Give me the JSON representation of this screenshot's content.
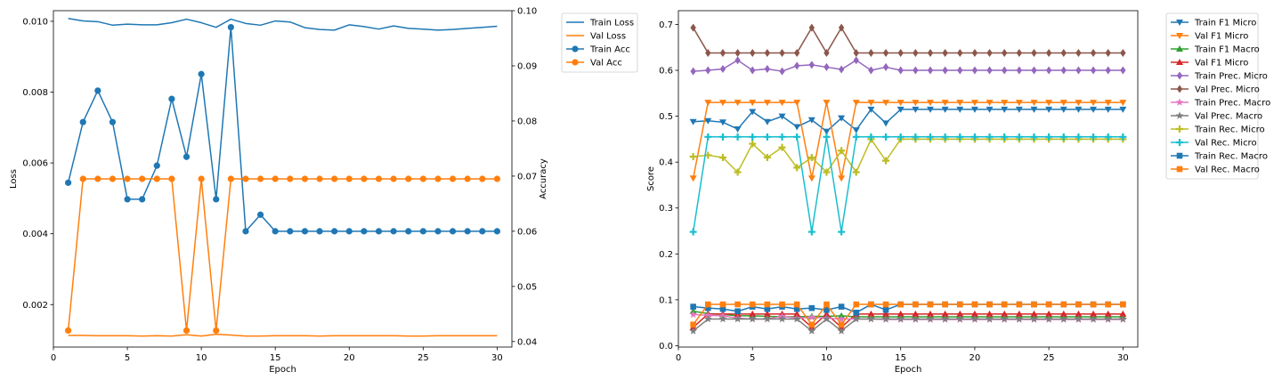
{
  "chart_data": [
    {
      "type": "line",
      "xlabel": "Epoch",
      "ylabel": "Loss",
      "ylabel_right": "Accuracy",
      "x": [
        1,
        2,
        3,
        4,
        5,
        6,
        7,
        8,
        9,
        10,
        11,
        12,
        13,
        14,
        15,
        16,
        17,
        18,
        19,
        20,
        21,
        22,
        23,
        24,
        25,
        26,
        27,
        28,
        29,
        30
      ],
      "xlim": [
        0.0,
        31.0
      ],
      "xticks": [
        0,
        5,
        10,
        15,
        20,
        25,
        30
      ],
      "ylim": [
        0.0008,
        0.0103
      ],
      "yticks": [
        0.002,
        0.004,
        0.006,
        0.008,
        0.01
      ],
      "yticks_labels": [
        "0.002",
        "0.004",
        "0.006",
        "0.008",
        "0.010"
      ],
      "ylim_right": [
        0.039,
        0.1
      ],
      "yticks_right": [
        0.04,
        0.05,
        0.06,
        0.07,
        0.08,
        0.09,
        0.1
      ],
      "yticks_right_labels": [
        "0.04",
        "0.05",
        "0.06",
        "0.07",
        "0.08",
        "0.09",
        "0.10"
      ],
      "grid": false,
      "legend_position": "outside-right",
      "series": [
        {
          "name": "Train Loss",
          "axis": "left",
          "color": "#1f77b4",
          "marker": "none",
          "values": [
            0.01008,
            0.01001,
            0.00999,
            0.00989,
            0.00992,
            0.0099,
            0.0099,
            0.00996,
            0.01006,
            0.00996,
            0.00983,
            0.01006,
            0.00994,
            0.00989,
            0.01001,
            0.00998,
            0.00982,
            0.00977,
            0.00975,
            0.0099,
            0.00985,
            0.00978,
            0.00987,
            0.0098,
            0.00978,
            0.00975,
            0.00977,
            0.0098,
            0.00983,
            0.00986
          ]
        },
        {
          "name": "Val Loss",
          "axis": "left",
          "color": "#ff7f0e",
          "marker": "none",
          "values": [
            0.00113,
            0.00113,
            0.00112,
            0.00112,
            0.00112,
            0.00111,
            0.00112,
            0.00111,
            0.00115,
            0.00111,
            0.00116,
            0.00114,
            0.00111,
            0.00111,
            0.00112,
            0.00112,
            0.00112,
            0.00111,
            0.00112,
            0.00112,
            0.00112,
            0.00112,
            0.00112,
            0.00111,
            0.00111,
            0.00112,
            0.00112,
            0.00112,
            0.00112,
            0.00112
          ]
        },
        {
          "name": "Train Acc",
          "axis": "right",
          "color": "#1f77b4",
          "marker": "circle",
          "values": [
            0.0688,
            0.0798,
            0.0855,
            0.0798,
            0.0658,
            0.0658,
            0.0719,
            0.084,
            0.0735,
            0.0885,
            0.0658,
            0.097,
            0.06,
            0.063,
            0.06,
            0.06,
            0.06,
            0.06,
            0.06,
            0.06,
            0.06,
            0.06,
            0.06,
            0.06,
            0.06,
            0.06,
            0.06,
            0.06,
            0.06,
            0.06
          ]
        },
        {
          "name": "Val Acc",
          "axis": "right",
          "color": "#ff7f0e",
          "marker": "circle",
          "values": [
            0.042,
            0.0695,
            0.0695,
            0.0695,
            0.0695,
            0.0695,
            0.0695,
            0.0695,
            0.042,
            0.0695,
            0.042,
            0.0695,
            0.0695,
            0.0695,
            0.0695,
            0.0695,
            0.0695,
            0.0695,
            0.0695,
            0.0695,
            0.0695,
            0.0695,
            0.0695,
            0.0695,
            0.0695,
            0.0695,
            0.0695,
            0.0695,
            0.0695,
            0.0695
          ]
        }
      ]
    },
    {
      "type": "line",
      "xlabel": "Epoch",
      "ylabel": "Score",
      "x": [
        1,
        2,
        3,
        4,
        5,
        6,
        7,
        8,
        9,
        10,
        11,
        12,
        13,
        14,
        15,
        16,
        17,
        18,
        19,
        20,
        21,
        22,
        23,
        24,
        25,
        26,
        27,
        28,
        29,
        30
      ],
      "xlim": [
        0.0,
        31.0
      ],
      "xticks": [
        0,
        5,
        10,
        15,
        20,
        25,
        30
      ],
      "ylim": [
        -0.003,
        0.73
      ],
      "yticks": [
        0.0,
        0.1,
        0.2,
        0.3,
        0.4,
        0.5,
        0.6,
        0.7
      ],
      "yticks_labels": [
        "0.0",
        "0.1",
        "0.2",
        "0.3",
        "0.4",
        "0.5",
        "0.6",
        "0.7"
      ],
      "grid": false,
      "legend_position": "outside-right",
      "series": [
        {
          "name": "Train F1 Micro",
          "color": "#1f77b4",
          "marker": "triangle-down",
          "values": [
            0.488,
            0.49,
            0.487,
            0.472,
            0.51,
            0.488,
            0.5,
            0.477,
            0.492,
            0.467,
            0.496,
            0.47,
            0.515,
            0.485,
            0.515,
            0.515,
            0.515,
            0.515,
            0.515,
            0.515,
            0.515,
            0.515,
            0.515,
            0.515,
            0.515,
            0.515,
            0.515,
            0.515,
            0.515,
            0.515
          ]
        },
        {
          "name": "Val F1 Micro",
          "color": "#ff7f0e",
          "marker": "triangle-down",
          "values": [
            0.365,
            0.53,
            0.53,
            0.53,
            0.53,
            0.53,
            0.53,
            0.53,
            0.365,
            0.53,
            0.365,
            0.53,
            0.53,
            0.53,
            0.53,
            0.53,
            0.53,
            0.53,
            0.53,
            0.53,
            0.53,
            0.53,
            0.53,
            0.53,
            0.53,
            0.53,
            0.53,
            0.53,
            0.53,
            0.53
          ]
        },
        {
          "name": "Train F1 Macro",
          "color": "#2ca02c",
          "marker": "triangle-up",
          "values": [
            0.075,
            0.07,
            0.068,
            0.065,
            0.065,
            0.064,
            0.063,
            0.063,
            0.064,
            0.064,
            0.065,
            0.063,
            0.063,
            0.063,
            0.063,
            0.063,
            0.063,
            0.063,
            0.063,
            0.063,
            0.063,
            0.063,
            0.063,
            0.063,
            0.063,
            0.063,
            0.063,
            0.063,
            0.063,
            0.063
          ]
        },
        {
          "name": "Val F1 Micro",
          "color": "#d62728",
          "marker": "triangle-up",
          "values": [
            0.04,
            0.069,
            0.069,
            0.069,
            0.069,
            0.069,
            0.069,
            0.069,
            0.04,
            0.069,
            0.04,
            0.069,
            0.069,
            0.069,
            0.069,
            0.069,
            0.069,
            0.069,
            0.069,
            0.069,
            0.069,
            0.069,
            0.069,
            0.069,
            0.069,
            0.069,
            0.069,
            0.069,
            0.069,
            0.069
          ]
        },
        {
          "name": "Train Prec. Micro",
          "color": "#9467bd",
          "marker": "diamond",
          "values": [
            0.598,
            0.6,
            0.603,
            0.622,
            0.6,
            0.603,
            0.598,
            0.61,
            0.612,
            0.607,
            0.602,
            0.622,
            0.6,
            0.607,
            0.6,
            0.6,
            0.6,
            0.6,
            0.6,
            0.6,
            0.6,
            0.6,
            0.6,
            0.6,
            0.6,
            0.6,
            0.6,
            0.6,
            0.6,
            0.6
          ]
        },
        {
          "name": "Val Prec. Micro",
          "color": "#8c564b",
          "marker": "diamond",
          "values": [
            0.693,
            0.638,
            0.638,
            0.638,
            0.638,
            0.638,
            0.638,
            0.638,
            0.693,
            0.638,
            0.693,
            0.638,
            0.638,
            0.638,
            0.638,
            0.638,
            0.638,
            0.638,
            0.638,
            0.638,
            0.638,
            0.638,
            0.638,
            0.638,
            0.638,
            0.638,
            0.638,
            0.638,
            0.638,
            0.638
          ]
        },
        {
          "name": "Train Prec. Macro",
          "color": "#e377c2",
          "marker": "star",
          "values": [
            0.068,
            0.066,
            0.065,
            0.06,
            0.058,
            0.058,
            0.064,
            0.06,
            0.062,
            0.06,
            0.058,
            0.058,
            0.058,
            0.057,
            0.057,
            0.057,
            0.057,
            0.057,
            0.057,
            0.057,
            0.057,
            0.057,
            0.057,
            0.057,
            0.057,
            0.057,
            0.057,
            0.057,
            0.057,
            0.057
          ]
        },
        {
          "name": "Val Prec. Macro",
          "color": "#7f7f7f",
          "marker": "star",
          "values": [
            0.032,
            0.058,
            0.058,
            0.058,
            0.058,
            0.058,
            0.058,
            0.058,
            0.032,
            0.058,
            0.032,
            0.058,
            0.058,
            0.058,
            0.058,
            0.058,
            0.058,
            0.058,
            0.058,
            0.058,
            0.058,
            0.058,
            0.058,
            0.058,
            0.058,
            0.058,
            0.058,
            0.058,
            0.058,
            0.058
          ]
        },
        {
          "name": "Train Rec. Micro",
          "color": "#bcbd22",
          "marker": "plus",
          "values": [
            0.412,
            0.415,
            0.41,
            0.378,
            0.44,
            0.41,
            0.432,
            0.388,
            0.41,
            0.378,
            0.425,
            0.378,
            0.45,
            0.403,
            0.45,
            0.45,
            0.45,
            0.45,
            0.45,
            0.45,
            0.45,
            0.45,
            0.45,
            0.45,
            0.45,
            0.45,
            0.45,
            0.45,
            0.45,
            0.45
          ]
        },
        {
          "name": "Val Rec. Micro",
          "color": "#17becf",
          "marker": "plus",
          "values": [
            0.248,
            0.455,
            0.455,
            0.455,
            0.455,
            0.455,
            0.455,
            0.455,
            0.248,
            0.455,
            0.248,
            0.455,
            0.455,
            0.455,
            0.455,
            0.455,
            0.455,
            0.455,
            0.455,
            0.455,
            0.455,
            0.455,
            0.455,
            0.455,
            0.455,
            0.455,
            0.455,
            0.455,
            0.455,
            0.455
          ]
        },
        {
          "name": "Train Rec. Macro",
          "color": "#1f77b4",
          "marker": "square",
          "values": [
            0.085,
            0.082,
            0.08,
            0.075,
            0.085,
            0.08,
            0.085,
            0.08,
            0.082,
            0.078,
            0.085,
            0.072,
            0.09,
            0.078,
            0.09,
            0.09,
            0.09,
            0.09,
            0.09,
            0.09,
            0.09,
            0.09,
            0.09,
            0.09,
            0.09,
            0.09,
            0.09,
            0.09,
            0.09,
            0.09
          ]
        },
        {
          "name": "Val Rec. Macro",
          "color": "#ff7f0e",
          "marker": "square",
          "values": [
            0.046,
            0.09,
            0.09,
            0.09,
            0.09,
            0.09,
            0.09,
            0.09,
            0.046,
            0.09,
            0.046,
            0.09,
            0.09,
            0.09,
            0.09,
            0.09,
            0.09,
            0.09,
            0.09,
            0.09,
            0.09,
            0.09,
            0.09,
            0.09,
            0.09,
            0.09,
            0.09,
            0.09,
            0.09,
            0.09
          ]
        }
      ]
    }
  ]
}
